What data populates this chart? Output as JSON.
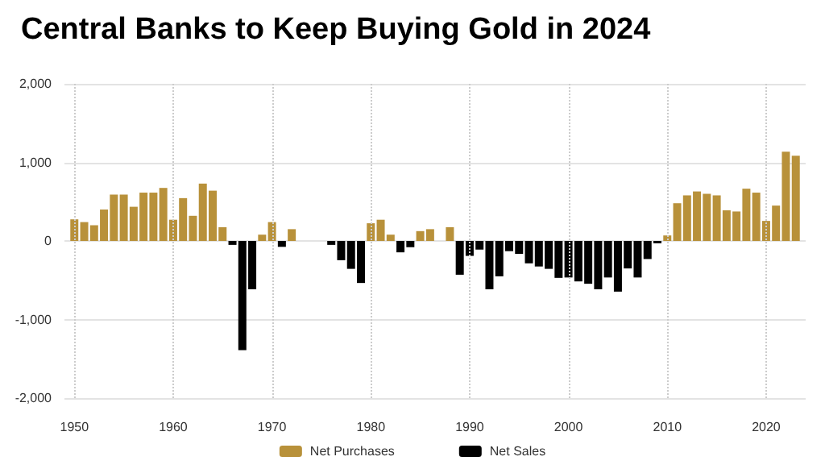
{
  "chart_data": {
    "type": "bar",
    "title": "Central Banks to Keep Buying Gold in 2024",
    "x": [
      1950,
      1951,
      1952,
      1953,
      1954,
      1955,
      1956,
      1957,
      1958,
      1959,
      1960,
      1961,
      1962,
      1963,
      1964,
      1965,
      1966,
      1967,
      1968,
      1969,
      1970,
      1971,
      1972,
      1973,
      1974,
      1975,
      1976,
      1977,
      1978,
      1979,
      1980,
      1981,
      1982,
      1983,
      1984,
      1985,
      1986,
      1987,
      1988,
      1989,
      1990,
      1991,
      1992,
      1993,
      1994,
      1995,
      1996,
      1997,
      1998,
      1999,
      2000,
      2001,
      2002,
      2003,
      2004,
      2005,
      2006,
      2007,
      2008,
      2009,
      2010,
      2011,
      2012,
      2013,
      2014,
      2015,
      2016,
      2017,
      2018,
      2019,
      2020,
      2021,
      2022,
      2023
    ],
    "series": [
      {
        "name": "Net Purchases",
        "color": "#b8913a",
        "values": [
          275,
          240,
          200,
          400,
          590,
          590,
          435,
          615,
          615,
          675,
          270,
          545,
          320,
          730,
          640,
          175,
          null,
          null,
          null,
          80,
          240,
          null,
          150,
          null,
          null,
          null,
          null,
          null,
          null,
          null,
          225,
          270,
          80,
          null,
          null,
          125,
          150,
          null,
          175,
          null,
          null,
          null,
          null,
          null,
          null,
          null,
          null,
          null,
          null,
          null,
          null,
          null,
          null,
          null,
          null,
          null,
          null,
          null,
          null,
          null,
          70,
          480,
          580,
          630,
          600,
          580,
          390,
          375,
          665,
          615,
          255,
          450,
          1135,
          1085
        ]
      },
      {
        "name": "Net Sales",
        "color": "#000000",
        "values": [
          null,
          null,
          null,
          null,
          null,
          null,
          null,
          null,
          null,
          null,
          null,
          null,
          null,
          null,
          null,
          null,
          -50,
          -1390,
          -615,
          null,
          null,
          -75,
          null,
          null,
          null,
          null,
          -50,
          -245,
          -355,
          -535,
          null,
          null,
          null,
          -145,
          -80,
          null,
          null,
          null,
          null,
          -430,
          -190,
          -110,
          -615,
          -450,
          -130,
          -165,
          -285,
          -325,
          -355,
          -470,
          -465,
          -515,
          -545,
          -615,
          -465,
          -645,
          -350,
          -465,
          -230,
          -30,
          null,
          null,
          null,
          null,
          null,
          null,
          null,
          null,
          null,
          null,
          null,
          null,
          null,
          null
        ]
      }
    ],
    "xlim": [
      1949,
      2024
    ],
    "xticks": [
      1950,
      1960,
      1970,
      1980,
      1990,
      2000,
      2010,
      2020
    ],
    "ylim": [
      -2000,
      2000
    ],
    "yticks": [
      {
        "value": -2000,
        "label": "-2,000"
      },
      {
        "value": -1000,
        "label": "-1,000"
      },
      0,
      {
        "value": 1000,
        "label": "1,000"
      },
      {
        "value": 2000,
        "label": "2,000"
      }
    ],
    "grid": true,
    "legend": "bottom"
  }
}
